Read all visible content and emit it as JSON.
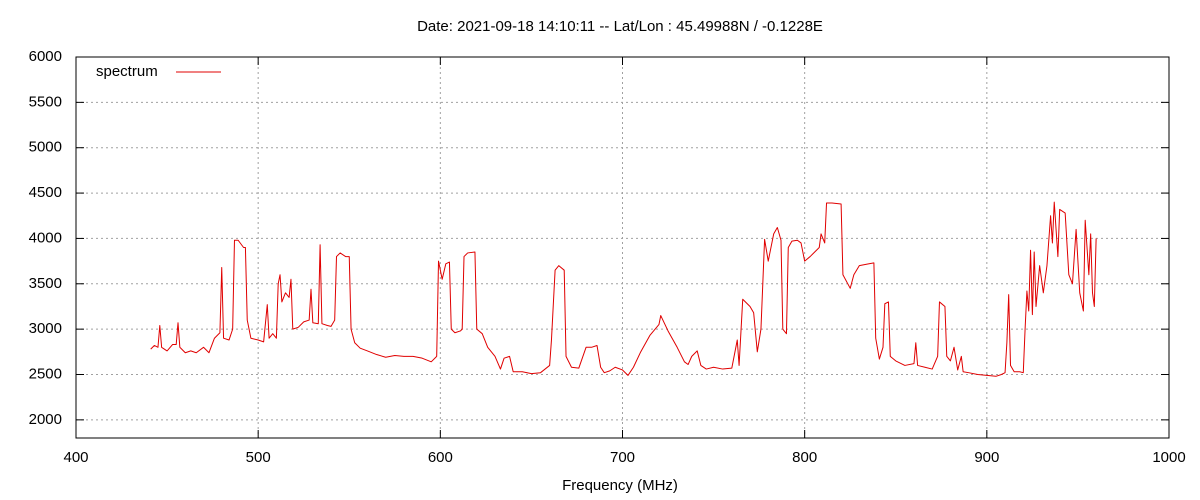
{
  "chart_data": {
    "type": "line",
    "title": "Date: 2021-09-18 14:10:11  --  Lat/Lon : 45.49988N / -0.1228E",
    "xlabel": "Frequency (MHz)",
    "x": [
      441,
      443,
      445,
      446,
      447,
      450,
      453,
      455,
      456,
      457,
      460,
      463,
      466,
      470,
      473,
      476,
      479,
      480,
      481,
      484,
      486,
      487,
      489,
      492,
      493,
      494,
      496,
      500,
      503,
      505,
      506,
      508,
      510,
      511,
      512,
      513,
      515,
      517,
      518,
      519,
      522,
      525,
      528,
      529,
      530,
      533,
      534,
      535,
      538,
      540,
      542,
      543,
      545,
      548,
      550,
      551,
      553,
      556,
      560,
      565,
      570,
      575,
      580,
      585,
      590,
      595,
      598,
      599,
      601,
      603,
      605,
      606,
      608,
      611,
      612,
      613,
      615,
      619,
      620,
      623,
      626,
      630,
      633,
      635,
      638,
      640,
      645,
      650,
      655,
      660,
      661,
      663,
      665,
      668,
      669,
      672,
      676,
      680,
      683,
      686,
      688,
      690,
      693,
      696,
      700,
      703,
      706,
      710,
      715,
      720,
      721,
      725,
      730,
      734,
      736,
      738,
      741,
      743,
      746,
      750,
      755,
      760,
      763,
      764,
      766,
      770,
      772,
      774,
      776,
      778,
      780,
      783,
      785,
      787,
      788,
      790,
      791,
      793,
      796,
      798,
      800,
      803,
      806,
      808,
      809,
      811,
      812,
      815,
      820,
      821,
      825,
      827,
      830,
      835,
      838,
      839,
      841,
      843,
      844,
      846,
      847,
      850,
      855,
      860,
      861,
      862,
      866,
      870,
      873,
      874,
      877,
      878,
      880,
      882,
      884,
      886,
      887,
      890,
      895,
      900,
      905,
      908,
      910,
      911,
      912,
      913,
      915,
      918,
      920,
      921,
      922,
      923,
      924,
      925,
      926,
      927,
      929,
      931,
      933,
      935,
      936,
      937,
      939,
      940,
      943,
      945,
      947,
      949,
      951,
      953,
      954,
      956,
      957,
      958,
      959,
      960
    ],
    "series": [
      {
        "name": "spectrum",
        "color": "#e00000",
        "values": [
          2780,
          2820,
          2800,
          3040,
          2800,
          2760,
          2830,
          2830,
          3070,
          2800,
          2740,
          2760,
          2740,
          2800,
          2740,
          2900,
          2960,
          3680,
          2900,
          2880,
          3000,
          3980,
          3980,
          3900,
          3900,
          3100,
          2900,
          2880,
          2860,
          3270,
          2900,
          2950,
          2900,
          3500,
          3600,
          3300,
          3400,
          3350,
          3550,
          3000,
          3020,
          3080,
          3100,
          3440,
          3070,
          3060,
          3930,
          3060,
          3040,
          3030,
          3100,
          3800,
          3840,
          3800,
          3800,
          3000,
          2850,
          2790,
          2760,
          2720,
          2690,
          2710,
          2700,
          2700,
          2680,
          2640,
          2700,
          3750,
          3550,
          3720,
          3740,
          3000,
          2960,
          2980,
          3000,
          3800,
          3840,
          3850,
          3000,
          2950,
          2800,
          2700,
          2560,
          2680,
          2700,
          2530,
          2530,
          2510,
          2520,
          2600,
          2880,
          3650,
          3700,
          3650,
          2700,
          2580,
          2570,
          2800,
          2800,
          2820,
          2580,
          2520,
          2540,
          2580,
          2550,
          2490,
          2580,
          2750,
          2930,
          3050,
          3150,
          2980,
          2800,
          2640,
          2610,
          2700,
          2760,
          2600,
          2560,
          2580,
          2560,
          2570,
          2880,
          2600,
          3330,
          3250,
          3180,
          2750,
          3000,
          3990,
          3750,
          4050,
          4120,
          3980,
          3000,
          2950,
          3900,
          3970,
          3980,
          3950,
          3750,
          3800,
          3860,
          3900,
          4050,
          3950,
          4390,
          4390,
          4380,
          3600,
          3450,
          3600,
          3700,
          3720,
          3730,
          2900,
          2670,
          2800,
          3280,
          3300,
          2700,
          2650,
          2600,
          2620,
          2850,
          2600,
          2580,
          2560,
          2700,
          3300,
          3250,
          2700,
          2650,
          2800,
          2550,
          2700,
          2530,
          2520,
          2500,
          2490,
          2480,
          2500,
          2520,
          2850,
          3380,
          2600,
          2530,
          2530,
          2520,
          3000,
          3420,
          3200,
          3870,
          3160,
          3850,
          3250,
          3700,
          3400,
          3700,
          4250,
          3950,
          4400,
          3800,
          4320,
          4280,
          3600,
          3500,
          4100,
          3400,
          3200,
          4200,
          3600,
          4050,
          3400,
          3250,
          4000
        ]
      }
    ],
    "xlim": [
      400,
      1000
    ],
    "xticks": [
      400,
      500,
      600,
      700,
      800,
      900,
      1000
    ],
    "ylim": [
      1800,
      6000
    ],
    "yticks": [
      2000,
      2500,
      3000,
      3500,
      4000,
      4500,
      5000,
      5500,
      6000
    ],
    "grid": true,
    "legend": "top-left"
  }
}
